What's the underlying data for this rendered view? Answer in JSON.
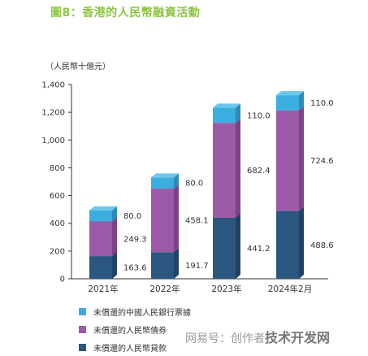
{
  "title": "圖8：香港的人民幣融資活動",
  "chart_data": {
    "type": "bar",
    "stacked": true,
    "categories": [
      "2021年",
      "2022年",
      "2023年",
      "2024年2月"
    ],
    "unit_label": "（人民幣十億元）",
    "ylim": [
      0,
      1400
    ],
    "yticks": [
      0,
      200,
      400,
      600,
      800,
      1000,
      1200,
      1400
    ],
    "ytick_labels": [
      "0",
      "200",
      "400",
      "600",
      "800",
      "1,000",
      "1,200",
      "1,400"
    ],
    "grid": false,
    "legend_position": "bottom-left",
    "series": [
      {
        "name": "未償還的人民幣貸款",
        "values": [
          163.6,
          191.7,
          441.2,
          488.6
        ],
        "labels": [
          "163.6",
          "191.7",
          "441.2",
          "488.6"
        ],
        "color": "#2b5680",
        "top_color": "#3d6d98",
        "side_color": "#1f4366"
      },
      {
        "name": "未償還的人民幣債券",
        "values": [
          249.3,
          458.1,
          682.4,
          724.6
        ],
        "labels": [
          "249.3",
          "458.1",
          "682.4",
          "724.6"
        ],
        "color": "#9c59a8",
        "top_color": "#b173bd",
        "side_color": "#7c4187"
      },
      {
        "name": "未償還的中國人民銀行票據",
        "values": [
          80.0,
          80.0,
          110.0,
          110.0
        ],
        "labels": [
          "80.0",
          "80.0",
          "110.0",
          "110.0"
        ],
        "color": "#3aaede",
        "top_color": "#6cc7ec",
        "side_color": "#2a8db7"
      }
    ],
    "legend_order": [
      2,
      1,
      0
    ]
  },
  "watermark": {
    "prefix": "网易号：创作者",
    "strong": "技术开发网"
  }
}
